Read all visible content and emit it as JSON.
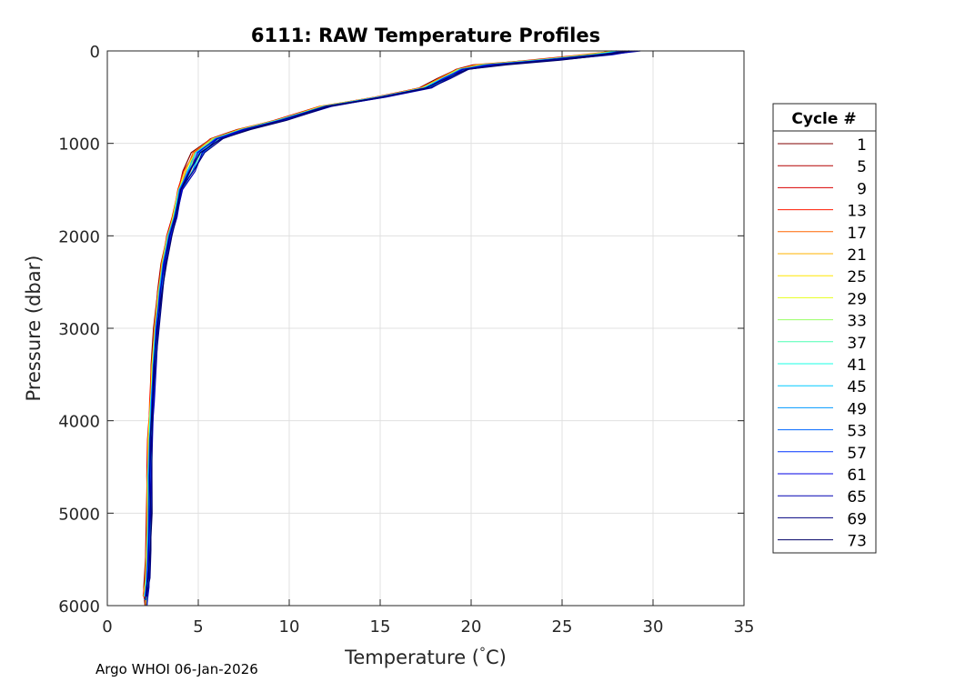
{
  "chart_data": {
    "type": "line",
    "title": "6111: RAW Temperature Profiles",
    "xlabel": "Temperature (°C)",
    "xlabel_prefix": "Temperature (",
    "xlabel_degree": "°",
    "xlabel_suffix": "C)",
    "ylabel": "Pressure (dbar)",
    "xlim": [
      0,
      35
    ],
    "ylim": [
      0,
      6000
    ],
    "y_reversed": true,
    "grid": true,
    "x_ticks": [
      "0",
      "5",
      "10",
      "15",
      "20",
      "25",
      "30",
      "35"
    ],
    "y_ticks": [
      "0",
      "1000",
      "2000",
      "3000",
      "4000",
      "5000",
      "6000"
    ],
    "legend": {
      "title": "Cycle #",
      "placement": "right",
      "entries": [
        {
          "label": "1",
          "color": "#800000"
        },
        {
          "label": "5",
          "color": "#b30000"
        },
        {
          "label": "9",
          "color": "#d90000"
        },
        {
          "label": "13",
          "color": "#ff1a00"
        },
        {
          "label": "17",
          "color": "#ff6600"
        },
        {
          "label": "21",
          "color": "#ffb300"
        },
        {
          "label": "25",
          "color": "#ffe600"
        },
        {
          "label": "29",
          "color": "#e6ff1a"
        },
        {
          "label": "33",
          "color": "#99ff66"
        },
        {
          "label": "37",
          "color": "#4dffb3"
        },
        {
          "label": "41",
          "color": "#1affe6"
        },
        {
          "label": "45",
          "color": "#00ccff"
        },
        {
          "label": "49",
          "color": "#0099ff"
        },
        {
          "label": "53",
          "color": "#0066ff"
        },
        {
          "label": "57",
          "color": "#0033ff"
        },
        {
          "label": "61",
          "color": "#0000e6"
        },
        {
          "label": "65",
          "color": "#0000b3"
        },
        {
          "label": "69",
          "color": "#000080"
        },
        {
          "label": "73",
          "color": "#000066"
        }
      ]
    },
    "mean_profile": {
      "temperature": [
        28.5,
        27.0,
        24.0,
        21.0,
        19.5,
        18.5,
        17.5,
        15.0,
        12.0,
        9.5,
        7.5,
        6.0,
        5.0,
        4.5,
        4.0,
        3.7,
        3.4,
        3.1,
        2.9,
        2.7,
        2.55,
        2.45,
        2.35,
        2.3,
        2.3,
        2.25,
        2.2,
        2.15,
        2.1,
        2.1
      ],
      "pressure": [
        0,
        40,
        100,
        150,
        200,
        300,
        400,
        500,
        600,
        750,
        850,
        950,
        1100,
        1300,
        1500,
        1800,
        2000,
        2300,
        2600,
        3000,
        3400,
        3800,
        4200,
        4600,
        5000,
        5400,
        5700,
        5800,
        5900,
        6000
      ]
    },
    "series_spread_degC": 0.35
  },
  "footer": {
    "text": "Argo WHOI 06-Jan-2026"
  }
}
